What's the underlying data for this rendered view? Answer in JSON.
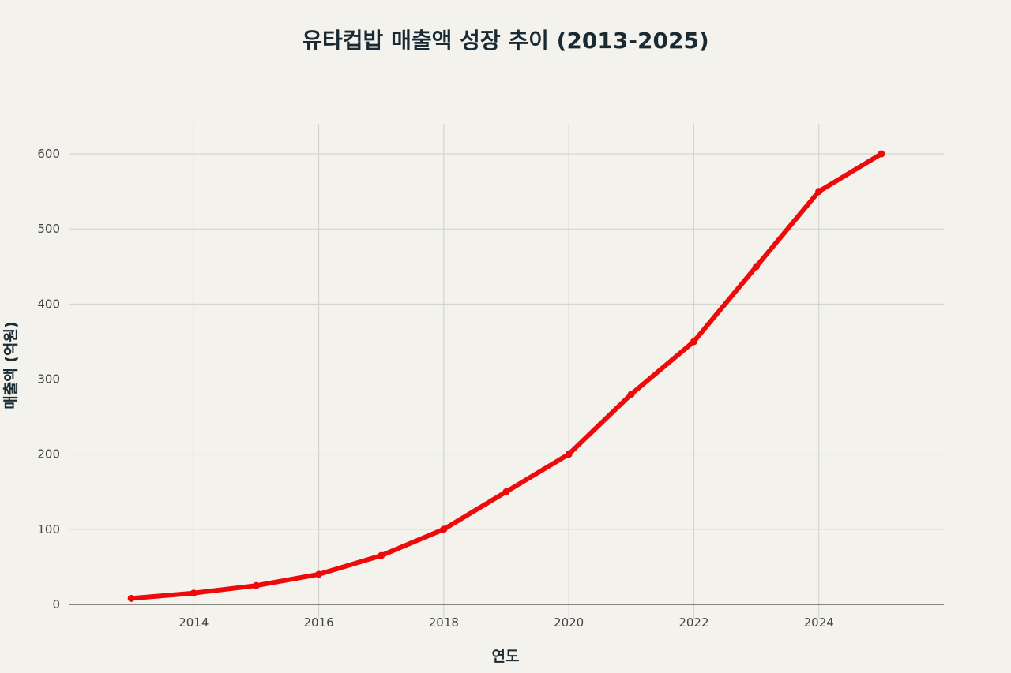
{
  "chart_data": {
    "type": "line",
    "title": "유타컵밥 매출액 성장 추이 (2013-2025)",
    "xlabel": "연도",
    "ylabel": "매출액 (억원)",
    "x": [
      2013,
      2014,
      2015,
      2016,
      2017,
      2018,
      2019,
      2020,
      2021,
      2022,
      2023,
      2024,
      2025
    ],
    "series": [
      {
        "values": [
          8,
          15,
          25,
          40,
          65,
          100,
          150,
          200,
          280,
          350,
          450,
          550,
          600
        ],
        "color": "#ee0a0a"
      }
    ],
    "xticks": [
      "2014",
      "2016",
      "2018",
      "2020",
      "2022",
      "2024"
    ],
    "yticks": [
      "0",
      "100",
      "200",
      "300",
      "400",
      "500",
      "600"
    ],
    "xlim": [
      2012,
      2026
    ],
    "ylim": [
      -20,
      640
    ],
    "grid": true,
    "legend": "none"
  }
}
